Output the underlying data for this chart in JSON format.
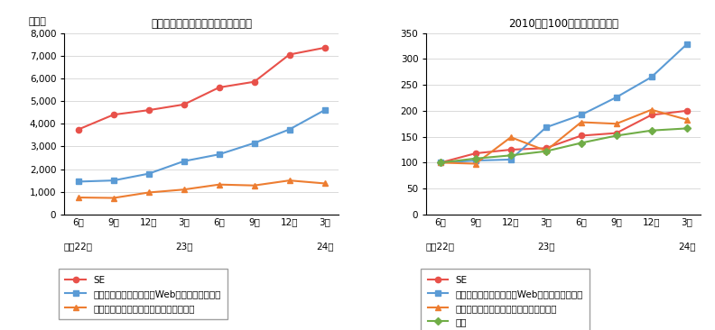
{
  "left_title": "インターネット専門職等の求人人数",
  "left_ylabel": "（人）",
  "right_title": "2010年を100とした場合の比較",
  "left_SE": [
    3750,
    4400,
    4600,
    4850,
    5600,
    5850,
    7050,
    7350
  ],
  "left_internet": [
    1450,
    1500,
    1800,
    2350,
    2650,
    3150,
    3750,
    4600
  ],
  "left_kumikomi": [
    750,
    730,
    970,
    1100,
    1320,
    1280,
    1500,
    1370
  ],
  "right_SE": [
    100,
    118,
    125,
    128,
    152,
    157,
    192,
    200
  ],
  "right_internet": [
    100,
    104,
    106,
    168,
    192,
    226,
    265,
    328
  ],
  "right_kumikomi": [
    100,
    98,
    149,
    123,
    178,
    175,
    202,
    183
  ],
  "right_zentai": [
    100,
    108,
    114,
    122,
    138,
    152,
    162,
    166
  ],
  "left_ylim": [
    0,
    8000
  ],
  "left_yticks": [
    0,
    1000,
    2000,
    3000,
    4000,
    5000,
    6000,
    7000,
    8000
  ],
  "right_ylim": [
    0,
    350
  ],
  "right_yticks": [
    0,
    50,
    100,
    150,
    200,
    250,
    300,
    350
  ],
  "color_SE": "#e8514a",
  "color_internet": "#5b9bd5",
  "color_kumikomi": "#ed7d31",
  "color_zentai": "#70ad47",
  "legend1_labels": [
    "SE",
    "インターネット専門職（Webエンジニア含む）",
    "組込・制御ソフトウェア開発エンジニア"
  ],
  "legend2_labels": [
    "SE",
    "インターネット専門職（Webエンジニア含む）",
    "組込・制御ソフトウェア開発エンジニア",
    "全体"
  ]
}
